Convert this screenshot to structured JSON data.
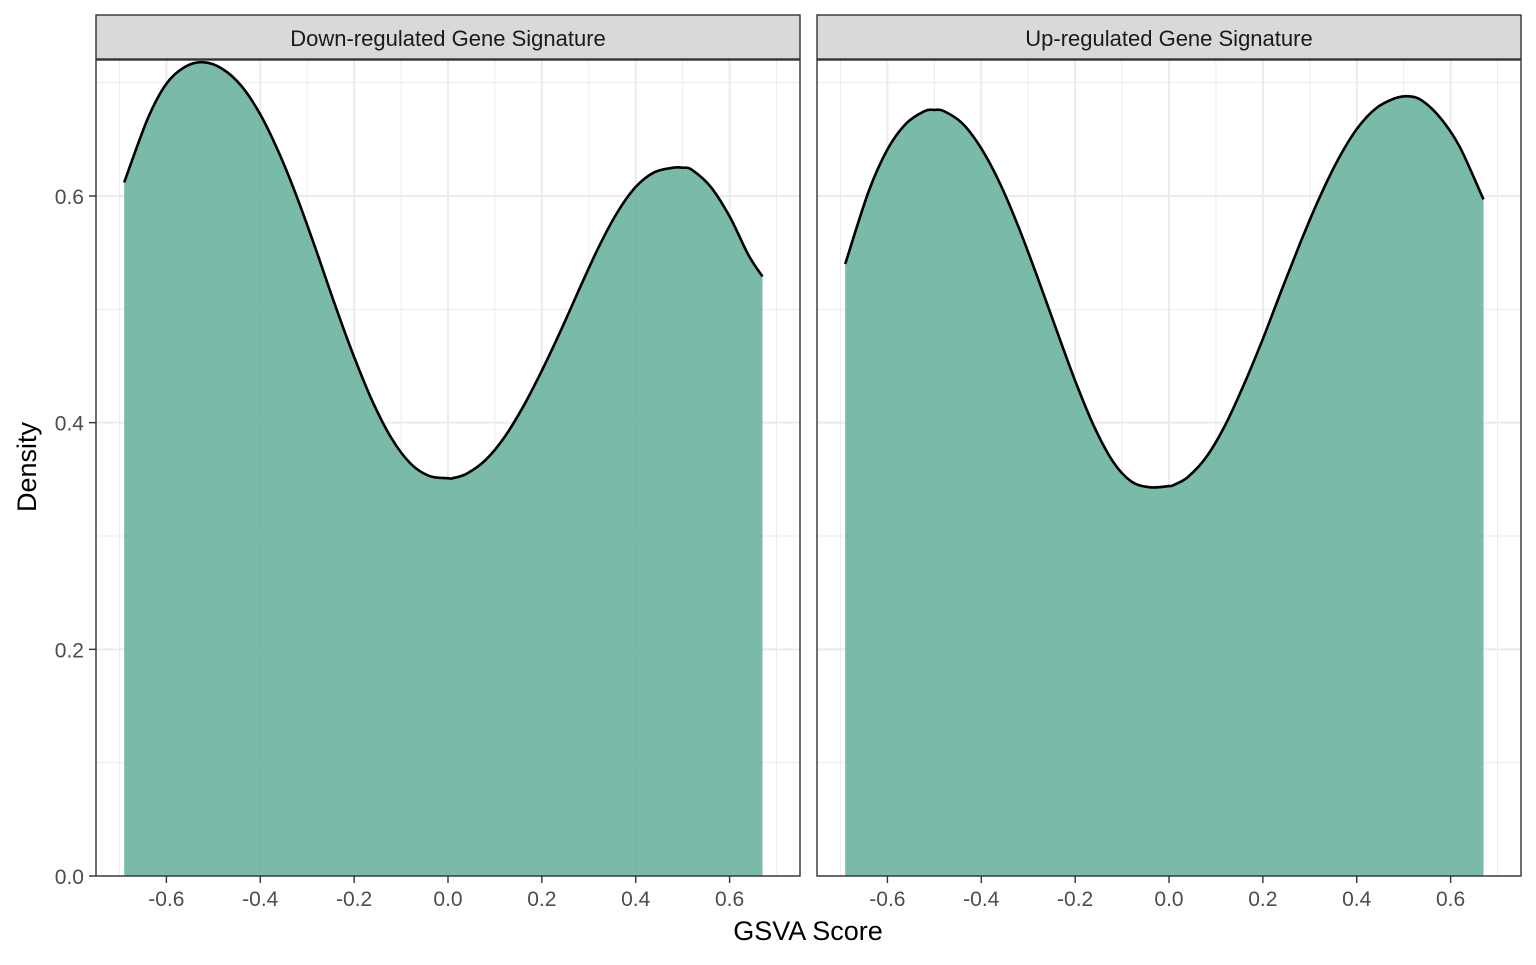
{
  "chart_data": {
    "type": "area",
    "xlabel": "GSVA Score",
    "ylabel": "Density",
    "xlim": [
      -0.75,
      0.75
    ],
    "ylim": [
      0,
      0.72
    ],
    "x_ticks": [
      -0.6,
      -0.4,
      -0.2,
      0.0,
      0.2,
      0.4,
      0.6
    ],
    "x_tick_labels": [
      "-0.6",
      "-0.4",
      "-0.2",
      "0.0",
      "0.2",
      "0.4",
      "0.6"
    ],
    "y_ticks": [
      0.0,
      0.2,
      0.4,
      0.6
    ],
    "y_tick_labels": [
      "0.0",
      "0.2",
      "0.4",
      "0.6"
    ],
    "grid": true,
    "fill_color": "#66b09c",
    "line_color": "#000000",
    "panels": [
      {
        "title": "Down-regulated Gene Signature",
        "x": [
          -0.69,
          -0.64,
          -0.6,
          -0.56,
          -0.52,
          -0.48,
          -0.44,
          -0.4,
          -0.36,
          -0.32,
          -0.28,
          -0.24,
          -0.2,
          -0.16,
          -0.12,
          -0.08,
          -0.04,
          0.0,
          0.01,
          0.04,
          0.08,
          0.12,
          0.16,
          0.2,
          0.24,
          0.28,
          0.32,
          0.36,
          0.4,
          0.44,
          0.48,
          0.5,
          0.52,
          0.56,
          0.6,
          0.64,
          0.67
        ],
        "y": [
          0.612,
          0.668,
          0.699,
          0.714,
          0.718,
          0.712,
          0.697,
          0.672,
          0.638,
          0.597,
          0.551,
          0.503,
          0.458,
          0.418,
          0.386,
          0.364,
          0.353,
          0.351,
          0.351,
          0.355,
          0.367,
          0.387,
          0.414,
          0.446,
          0.481,
          0.518,
          0.554,
          0.585,
          0.608,
          0.621,
          0.625,
          0.625,
          0.623,
          0.608,
          0.582,
          0.548,
          0.529
        ]
      },
      {
        "title": "Up-regulated Gene Signature",
        "x": [
          -0.69,
          -0.64,
          -0.6,
          -0.56,
          -0.52,
          -0.5,
          -0.48,
          -0.44,
          -0.4,
          -0.36,
          -0.32,
          -0.28,
          -0.24,
          -0.2,
          -0.16,
          -0.12,
          -0.08,
          -0.04,
          0.0,
          0.01,
          0.04,
          0.08,
          0.12,
          0.16,
          0.2,
          0.24,
          0.28,
          0.32,
          0.36,
          0.4,
          0.44,
          0.48,
          0.51,
          0.54,
          0.58,
          0.62,
          0.67
        ],
        "y": [
          0.54,
          0.604,
          0.641,
          0.664,
          0.675,
          0.676,
          0.675,
          0.664,
          0.642,
          0.611,
          0.572,
          0.528,
          0.482,
          0.437,
          0.397,
          0.366,
          0.348,
          0.343,
          0.344,
          0.345,
          0.352,
          0.37,
          0.398,
          0.434,
          0.474,
          0.517,
          0.559,
          0.598,
          0.632,
          0.659,
          0.677,
          0.686,
          0.688,
          0.684,
          0.668,
          0.643,
          0.597
        ]
      }
    ]
  }
}
